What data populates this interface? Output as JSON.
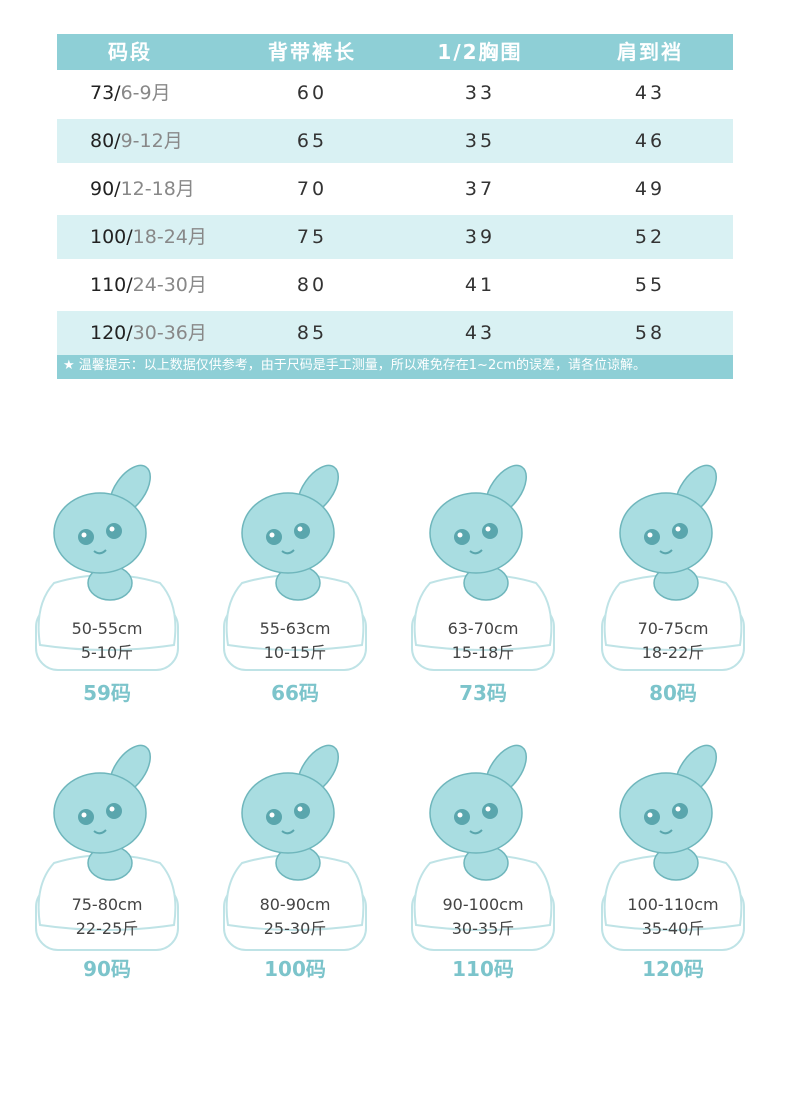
{
  "table": {
    "headers": [
      "码段",
      "背带裤长",
      "1/2胸围",
      "肩到裆"
    ],
    "rows": [
      {
        "size": "73/",
        "age": "6-9月",
        "cells": [
          60,
          33,
          43
        ]
      },
      {
        "size": "80/",
        "age": "9-12月",
        "cells": [
          65,
          35,
          46
        ]
      },
      {
        "size": "90/",
        "age": "12-18月",
        "cells": [
          70,
          37,
          49
        ]
      },
      {
        "size": "100/",
        "age": "18-24月",
        "cells": [
          75,
          39,
          52
        ]
      },
      {
        "size": "110/",
        "age": "24-30月",
        "cells": [
          80,
          41,
          55
        ]
      },
      {
        "size": "120/",
        "age": "30-36月",
        "cells": [
          85,
          43,
          58
        ]
      }
    ]
  },
  "tip": "★ 温馨提示：以上数据仅供参考，由于尺码是手工测量，所以难免存在1~2cm的误差，请各位谅解。",
  "cards": [
    {
      "height": "50-55cm",
      "weight": "5-10斤",
      "size": "59码"
    },
    {
      "height": "55-63cm",
      "weight": "10-15斤",
      "size": "66码"
    },
    {
      "height": "63-70cm",
      "weight": "15-18斤",
      "size": "73码"
    },
    {
      "height": "70-75cm",
      "weight": "18-22斤",
      "size": "80码"
    },
    {
      "height": "75-80cm",
      "weight": "22-25斤",
      "size": "90码"
    },
    {
      "height": "80-90cm",
      "weight": "25-30斤",
      "size": "100码"
    },
    {
      "height": "90-100cm",
      "weight": "30-35斤",
      "size": "110码"
    },
    {
      "height": "100-110cm",
      "weight": "35-40斤",
      "size": "120码"
    }
  ]
}
